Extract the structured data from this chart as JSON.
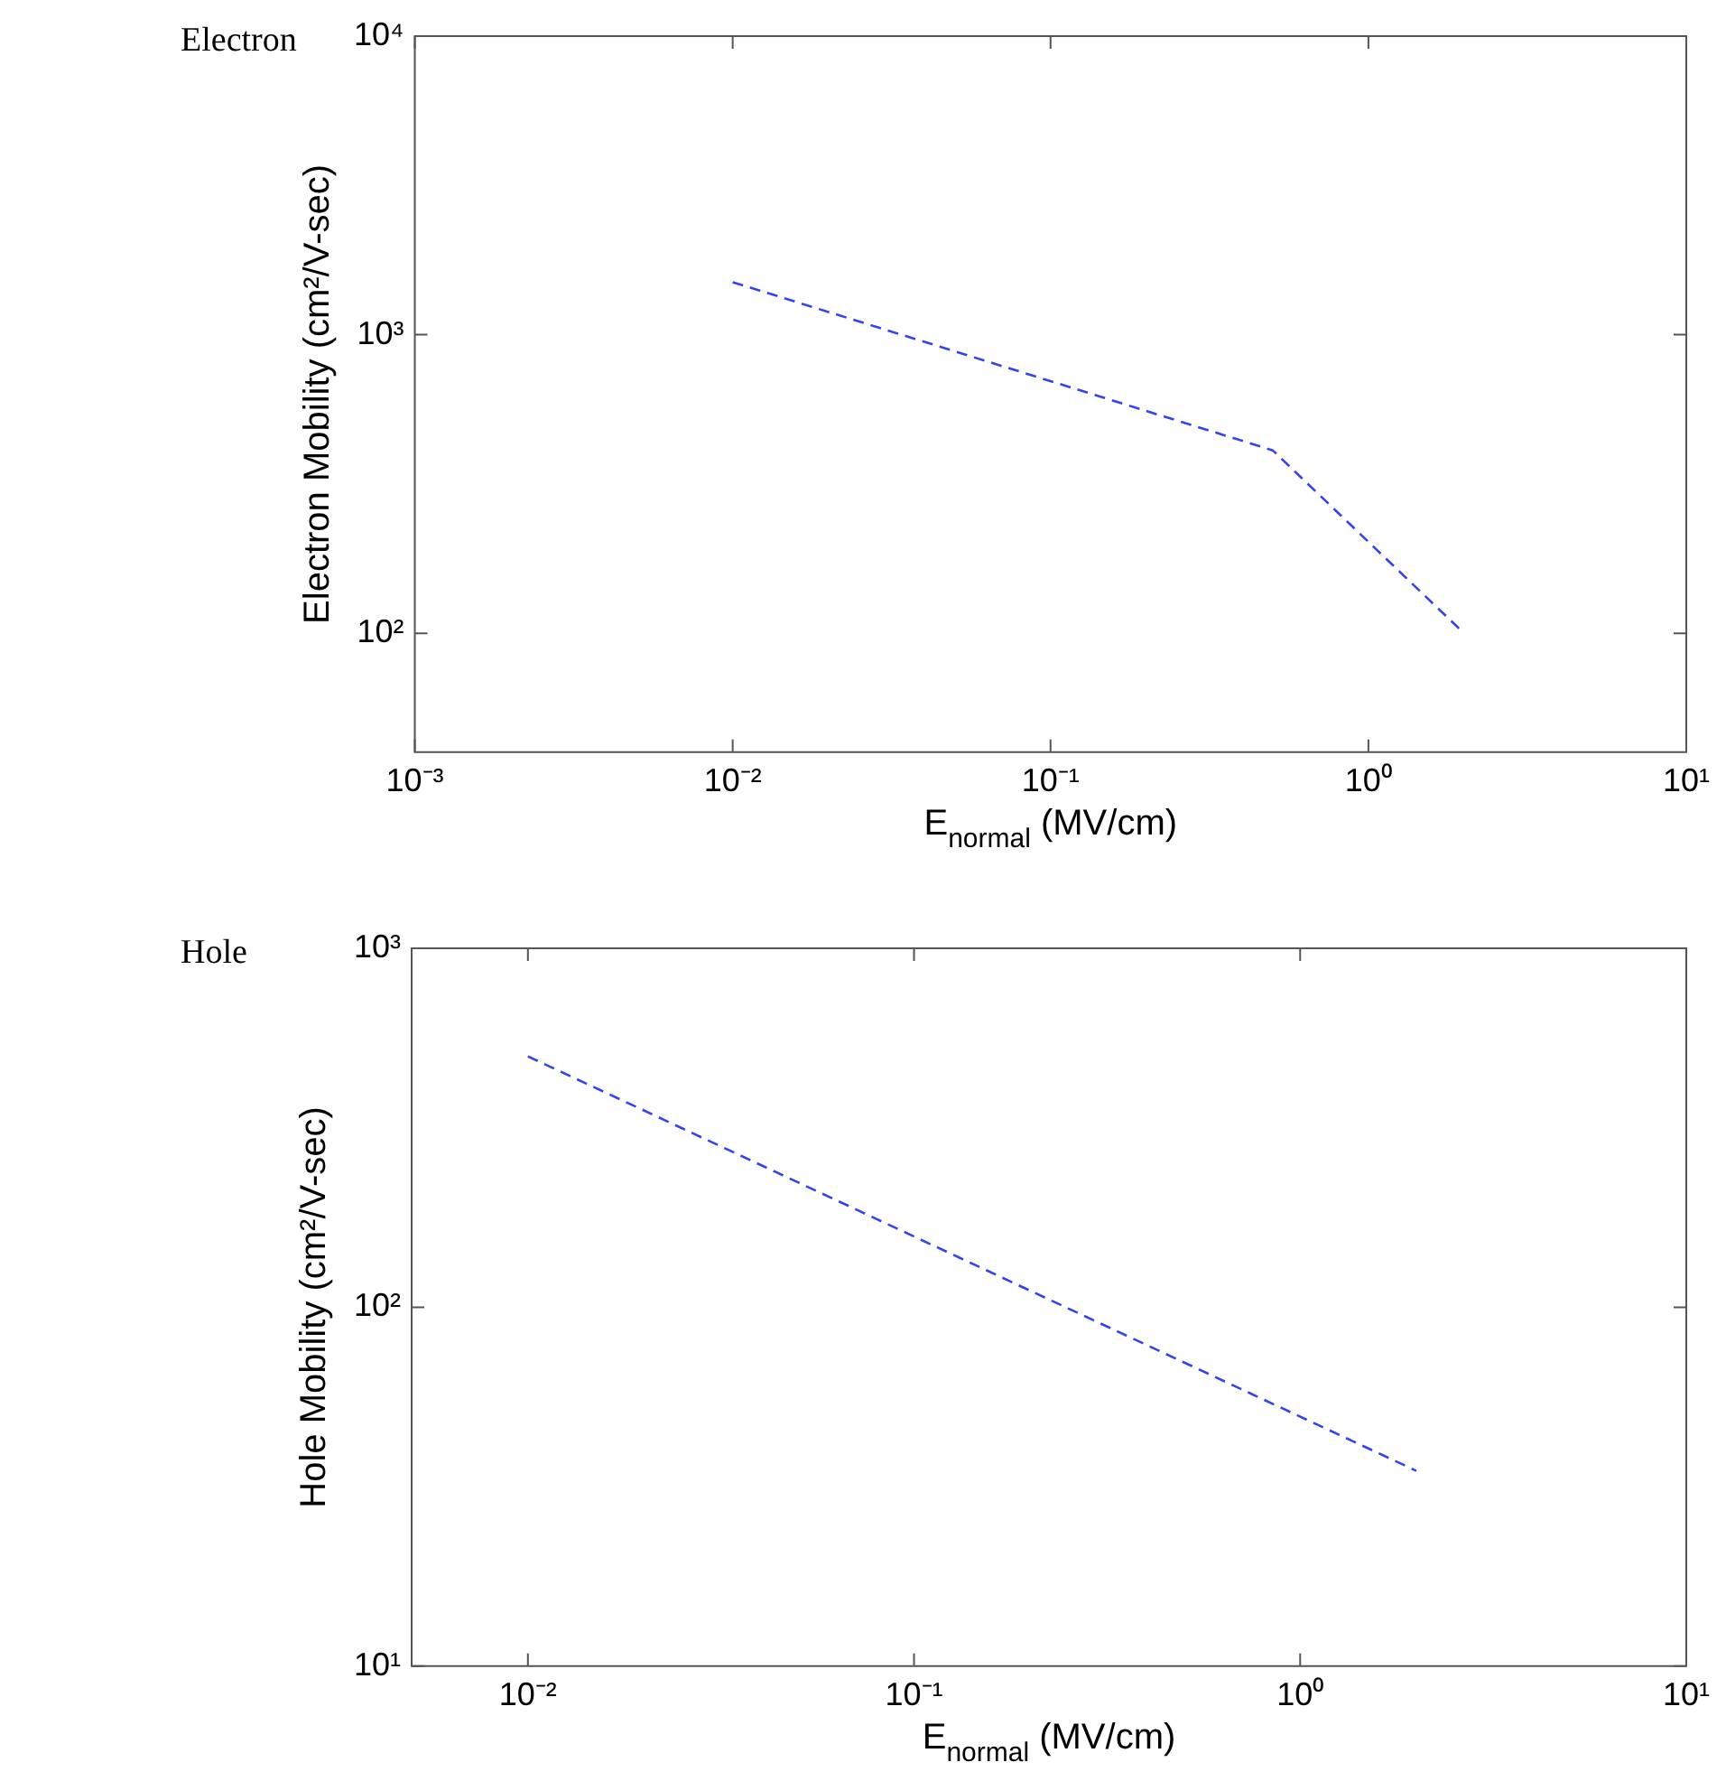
{
  "chart_data": [
    {
      "type": "line",
      "title": "Electron",
      "xlabel": "E$_{normal}$ (MV/cm)",
      "ylabel": "Electron Mobility (cm²/V-sec)",
      "x": [
        0.01,
        0.5,
        2
      ],
      "series": [
        {
          "color": "#3344ee",
          "values": [
            1500,
            410,
            100
          ]
        }
      ],
      "log": "xy",
      "xlim": [
        0.001,
        10
      ],
      "xticks": [
        {
          "value": 0.001,
          "label": "10⁻³"
        },
        {
          "value": 0.01,
          "label": "10⁻²"
        },
        {
          "value": 0.1,
          "label": "10⁻¹"
        },
        {
          "value": 1,
          "label": "10⁰"
        },
        {
          "value": 10,
          "label": "10¹"
        }
      ],
      "ylim": [
        40,
        10000
      ],
      "yticks": [
        {
          "value": 100,
          "label": "10²"
        },
        {
          "value": 1000,
          "label": "10³"
        },
        {
          "value": 10000,
          "label": "10⁴"
        }
      ],
      "grid": false,
      "legend": false,
      "line_style": "dashed",
      "marker": "none"
    },
    {
      "type": "line",
      "title": "Hole",
      "xlabel": "E$_{normal}$ (MV/cm)",
      "ylabel": "Hole Mobility (cm²/V-sec)",
      "x": [
        0.01,
        2
      ],
      "series": [
        {
          "color": "#3344ee",
          "values": [
            500,
            35
          ]
        }
      ],
      "log": "xy",
      "xlim": [
        0.005,
        10
      ],
      "xticks": [
        {
          "value": 0.01,
          "label": "10⁻²"
        },
        {
          "value": 0.1,
          "label": "10⁻¹"
        },
        {
          "value": 1,
          "label": "10⁰"
        },
        {
          "value": 10,
          "label": "10¹"
        }
      ],
      "ylim": [
        10,
        1000
      ],
      "yticks": [
        {
          "value": 10,
          "label": "10¹"
        },
        {
          "value": 100,
          "label": "10²"
        },
        {
          "value": 1000,
          "label": "10³"
        }
      ],
      "grid": false,
      "legend": false,
      "line_style": "dashed",
      "marker": "none"
    }
  ]
}
